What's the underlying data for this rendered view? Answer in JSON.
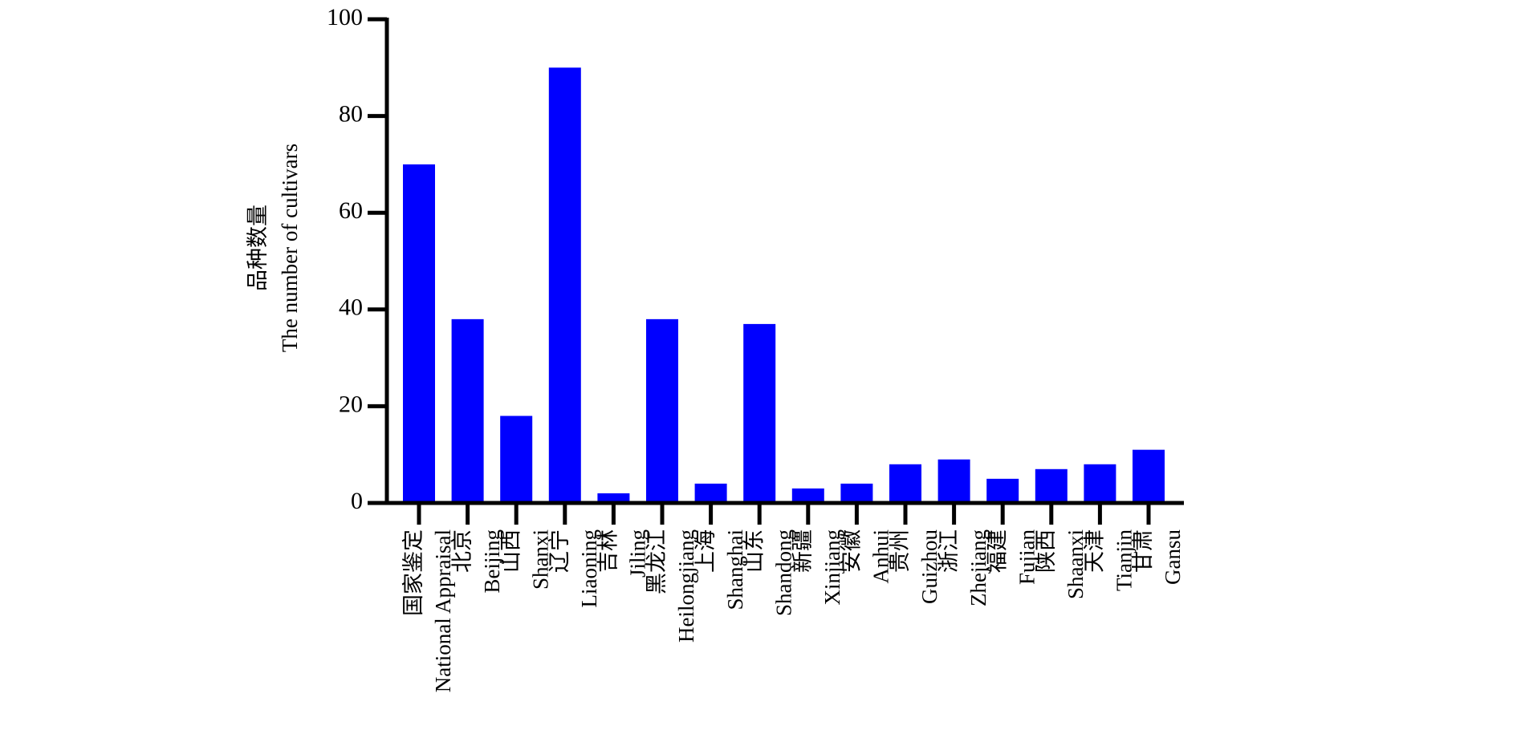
{
  "chart_data": {
    "type": "bar",
    "y_label": [
      "品种数量",
      "The number of cultivars"
    ],
    "categories": [
      [
        "国家鉴定",
        "National Appraisal"
      ],
      [
        "北京",
        "Beijing"
      ],
      [
        "山西",
        "Shanxi"
      ],
      [
        "辽宁",
        "Liaoning"
      ],
      [
        "吉林",
        "Jiling"
      ],
      [
        "黑龙江",
        "Heilongjiang"
      ],
      [
        "上海",
        "Shanghai"
      ],
      [
        "山东",
        "Shandong"
      ],
      [
        "新疆",
        "Xinjiang"
      ],
      [
        "安徽",
        "Anhui"
      ],
      [
        "贵州",
        "Guizhou"
      ],
      [
        "浙江",
        "Zhejiang"
      ],
      [
        "福建",
        "Fujian"
      ],
      [
        "陕西",
        "Shaanxi"
      ],
      [
        "天津",
        "Tianjin"
      ],
      [
        "甘肃",
        "Gansu"
      ]
    ],
    "values": [
      70,
      38,
      18,
      90,
      2,
      38,
      4,
      37,
      3,
      4,
      8,
      9,
      5,
      7,
      8,
      11
    ],
    "color": "#0000ff",
    "ylim": [
      0,
      100
    ],
    "yticks": [
      0,
      20,
      40,
      60,
      80,
      100
    ],
    "grid": false
  }
}
